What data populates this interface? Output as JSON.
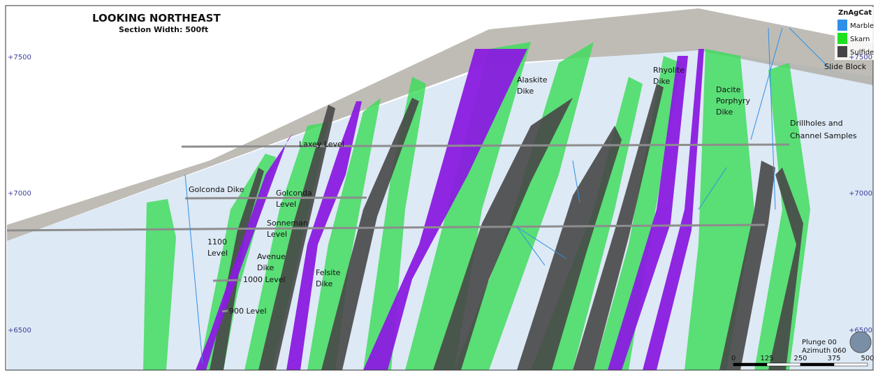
{
  "header": {
    "title": "LOOKING NORTHEAST",
    "subtitle": "Section Width: 500ft"
  },
  "legend": {
    "title": "ZnAgCat",
    "items": [
      {
        "name": "Marble",
        "color": "#2f8fe8"
      },
      {
        "name": "Skarn",
        "color": "#1fe21f"
      },
      {
        "name": "Sulfide",
        "color": "#454545"
      }
    ]
  },
  "elevations": {
    "left": [
      "+7500",
      "+7000",
      "+6500"
    ],
    "right": [
      "+7500",
      "+7000",
      "+6500"
    ]
  },
  "labels": {
    "alaskite_dike": [
      "Alaskite",
      "Dike"
    ],
    "rhyolite_dike": [
      "Rhyolite",
      "Dike"
    ],
    "dacite_dike": [
      "Dacite",
      "Porphyry",
      "Dike"
    ],
    "slide_block": [
      "Slide Block"
    ],
    "drillholes": [
      "Drillholes and",
      "Channel Samples"
    ],
    "laxey_level": [
      "Laxey Level"
    ],
    "golconda_dike": [
      "Golconda Dike"
    ],
    "golconda_level": [
      "Golconda",
      "Level"
    ],
    "sonneman_level": [
      "Sonneman",
      "Level"
    ],
    "level_1100": [
      "1100",
      "Level"
    ],
    "avenue_dike": [
      "Avenue",
      "Dike"
    ],
    "felsite_dike": [
      "Felsite",
      "Dike"
    ],
    "level_1000": [
      "1000 Level"
    ],
    "level_900": [
      "900 Level"
    ]
  },
  "view": {
    "plunge": "Plunge 00",
    "azimuth": "Azimuth 060"
  },
  "scale": [
    "0",
    "125",
    "250",
    "375",
    "500"
  ]
}
